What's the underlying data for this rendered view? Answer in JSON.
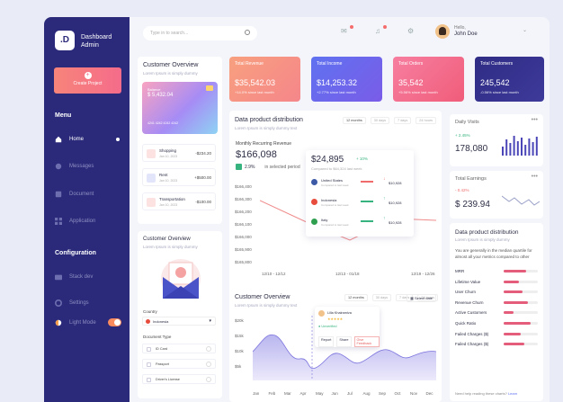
{
  "brand": {
    "logo": ".D",
    "line1": "Dashboard",
    "line2": "Admin"
  },
  "sidebar": {
    "create_label": "Create Project",
    "menu_title": "Menu",
    "items": [
      {
        "label": "Home"
      },
      {
        "label": "Messages"
      },
      {
        "label": "Document"
      },
      {
        "label": "Application"
      }
    ],
    "config_title": "Configuration",
    "config_items": [
      {
        "label": "Stack dev"
      },
      {
        "label": "Settings"
      },
      {
        "label": "Light Mode"
      }
    ]
  },
  "topbar": {
    "search_placeholder": "Type in to search...",
    "greeting": "Hello,",
    "user_name": "John Doe"
  },
  "overview": {
    "title": "Customer Overview",
    "subtitle": "Lorem Ipsum is simply dummy",
    "card_label": "Balance",
    "card_amount": "$ 5,432.04",
    "card_number": "4241  4242  4242  4242",
    "transactions": [
      {
        "label": "Shopping",
        "date": "Jan 10, 2023",
        "amount": "-$234.20"
      },
      {
        "label": "Rent",
        "date": "Jan 10, 2023",
        "amount": "+$500.00"
      },
      {
        "label": "Transportation",
        "date": "Jan 10, 2023",
        "amount": "-$100.00"
      }
    ]
  },
  "overview2": {
    "title": "Customer Overview",
    "subtitle": "Lorem Ipsum is simply dummy",
    "country_label": "Country",
    "country_value": "Indonesia",
    "doc_label": "Document Type",
    "docs": [
      "ID Card",
      "Passport",
      "Driver's License"
    ]
  },
  "stats": [
    {
      "title": "Total Revenue",
      "value": "$35,542.03",
      "change": "+14.0%",
      "note": "since last month",
      "color1": "#f8a07f",
      "color2": "#f5868a"
    },
    {
      "title": "Total Income",
      "value": "$14,253.32",
      "change": "+2.77%",
      "note": "since last month",
      "color1": "#5f72f0",
      "color2": "#7a5ce8"
    },
    {
      "title": "Total Orders",
      "value": "35,542",
      "change": "+5.56%",
      "note": "since last month",
      "color1": "#f77ea0",
      "color2": "#f05d7a"
    },
    {
      "title": "Total Customers",
      "value": "245,542",
      "change": "-0.56%",
      "note": "since last month",
      "color1": "#2f2c85",
      "color2": "#3d3a9a"
    }
  ],
  "distribution": {
    "title": "Data product distribution",
    "subtitle": "Lorem Ipsum is simply dummy text",
    "tabs": [
      "12 months",
      "30 days",
      "7 days",
      "24 hours"
    ],
    "mrr_label": "Monthly Recurring Revenue",
    "mrr_value": "$166,098",
    "mrr_change": "2.9%",
    "mrr_note": "in selected period",
    "popup_value": "$24,895",
    "popup_change": "+ 10%",
    "popup_note": "Compared to $64,324 last week",
    "countries": [
      {
        "name": "United States",
        "sub": "Compared to last week",
        "value": "$10,928",
        "color": "#f06b6b"
      },
      {
        "name": "Indonesia",
        "sub": "Compared to last week",
        "value": "$10,928",
        "color": "#36b37e"
      },
      {
        "name": "Italy",
        "sub": "Compared to last week",
        "value": "$10,928",
        "color": "#36b37e"
      }
    ],
    "y_ticks": [
      "$166,400",
      "$166,300",
      "$166,200",
      "$166,100",
      "$166,000",
      "$165,900",
      "$165,800"
    ],
    "x_ticks": [
      "12/10 - 12/12",
      "12/13 - 01/18",
      "12/19 - 12/26"
    ]
  },
  "customer_overview": {
    "title": "Customer Overview",
    "subtitle": "Lorem Ipsum is simply dummy text",
    "tabs": [
      "12 months",
      "30 days",
      "7 days",
      "24 hours"
    ],
    "select_label": "Select date",
    "y_ticks": [
      "$20k",
      "$15k",
      "$10k",
      "$5k"
    ],
    "months": [
      "Jan",
      "Feb",
      "Mar",
      "Apr",
      "May",
      "Jun",
      "Jul",
      "Aug",
      "Sep",
      "Oct",
      "Nov",
      "Dec"
    ],
    "tooltip_name": "Lilla Khalramiva",
    "tooltip_status": "Unverified",
    "tooltip_actions": [
      "Report",
      "Share",
      "Give Feedback"
    ]
  },
  "daily_visits": {
    "title": "Daily Visits",
    "change": "+ 2.45%",
    "value": "178,080"
  },
  "total_earnings": {
    "title": "Total Earnings",
    "change": "- 0.42%",
    "value": "$ 239.94"
  },
  "right_dist": {
    "title": "Data product distribution",
    "subtitle": "Lorem Ipsum is simply dummy",
    "desc": "You are generally in the median quartile for almost all your metrics compared to other",
    "rows": [
      {
        "label": "MRR",
        "pct": 0.65
      },
      {
        "label": "Lifetime Value",
        "pct": 0.45
      },
      {
        "label": "User Churn",
        "pct": 0.55
      },
      {
        "label": "Revenue Churn",
        "pct": 0.7
      },
      {
        "label": "Active Customers",
        "pct": 0.3
      },
      {
        "label": "Quick Ratio",
        "pct": 0.8
      },
      {
        "label": "Failed Charges ($)",
        "pct": 0.5
      },
      {
        "label": "Failed Charges ($)",
        "pct": 0.6
      }
    ],
    "help": "Need help reading these charts?",
    "help_link": "Learn"
  },
  "colors": {
    "sidebar": "#2b2a7a",
    "accent": "#f56c8a",
    "line": "#f08a8a",
    "area": "#c7c4f2"
  }
}
